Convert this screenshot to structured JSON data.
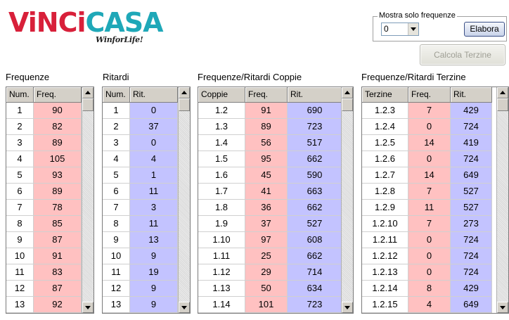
{
  "logo": {
    "vinci": "ViNCi",
    "casa": "CASA",
    "tagline": "WinforLife!"
  },
  "controls": {
    "group_label": "Mostra solo frequenze",
    "combo_value": "0",
    "elabora_label": "Elabora",
    "calcola_label": "Calcola Terzine"
  },
  "sections": {
    "frequenze": "Frequenze",
    "ritardi": "Ritardi",
    "coppie": "Frequenze/Ritardi Coppie",
    "terzine": "Frequenze/Ritardi Terzine"
  },
  "colors": {
    "freq_bg": "#ffc1c1",
    "rit_bg": "#c3c3ff",
    "accent_red": "#d8203a",
    "accent_teal": "#1fa8b8"
  },
  "grids": [
    {
      "id": "frequenze",
      "headers": [
        "Num.",
        "Freq."
      ],
      "styles": [
        "plain",
        "red"
      ],
      "rows": [
        [
          "1",
          "90"
        ],
        [
          "2",
          "82"
        ],
        [
          "3",
          "89"
        ],
        [
          "4",
          "105"
        ],
        [
          "5",
          "93"
        ],
        [
          "6",
          "89"
        ],
        [
          "7",
          "78"
        ],
        [
          "8",
          "85"
        ],
        [
          "9",
          "87"
        ],
        [
          "10",
          "91"
        ],
        [
          "11",
          "83"
        ],
        [
          "12",
          "87"
        ],
        [
          "13",
          "92"
        ]
      ]
    },
    {
      "id": "ritardi",
      "headers": [
        "Num.",
        "Rit."
      ],
      "styles": [
        "plain",
        "blue"
      ],
      "rows": [
        [
          "1",
          "0"
        ],
        [
          "2",
          "37"
        ],
        [
          "3",
          "0"
        ],
        [
          "4",
          "4"
        ],
        [
          "5",
          "1"
        ],
        [
          "6",
          "11"
        ],
        [
          "7",
          "3"
        ],
        [
          "8",
          "11"
        ],
        [
          "9",
          "13"
        ],
        [
          "10",
          "9"
        ],
        [
          "11",
          "19"
        ],
        [
          "12",
          "9"
        ],
        [
          "13",
          "9"
        ]
      ]
    },
    {
      "id": "coppie",
      "headers": [
        "Coppie",
        "Freq.",
        "Rit."
      ],
      "styles": [
        "plain",
        "red",
        "blue"
      ],
      "rows": [
        [
          "1.2",
          "91",
          "690"
        ],
        [
          "1.3",
          "89",
          "723"
        ],
        [
          "1.4",
          "56",
          "517"
        ],
        [
          "1.5",
          "95",
          "662"
        ],
        [
          "1.6",
          "45",
          "590"
        ],
        [
          "1.7",
          "41",
          "663"
        ],
        [
          "1.8",
          "36",
          "662"
        ],
        [
          "1.9",
          "37",
          "527"
        ],
        [
          "1.10",
          "97",
          "608"
        ],
        [
          "1.11",
          "25",
          "662"
        ],
        [
          "1.12",
          "29",
          "714"
        ],
        [
          "1.13",
          "50",
          "634"
        ],
        [
          "1.14",
          "101",
          "723"
        ]
      ]
    },
    {
      "id": "terzine",
      "headers": [
        "Terzine",
        "Freq.",
        "Rit."
      ],
      "styles": [
        "plain",
        "red",
        "blue"
      ],
      "rows": [
        [
          "1.2.3",
          "7",
          "429"
        ],
        [
          "1.2.4",
          "0",
          "724"
        ],
        [
          "1.2.5",
          "14",
          "419"
        ],
        [
          "1.2.6",
          "0",
          "724"
        ],
        [
          "1.2.7",
          "14",
          "649"
        ],
        [
          "1.2.8",
          "7",
          "527"
        ],
        [
          "1.2.9",
          "11",
          "527"
        ],
        [
          "1.2.10",
          "7",
          "273"
        ],
        [
          "1.2.11",
          "0",
          "724"
        ],
        [
          "1.2.12",
          "0",
          "724"
        ],
        [
          "1.2.13",
          "0",
          "724"
        ],
        [
          "1.2.14",
          "8",
          "429"
        ],
        [
          "1.2.15",
          "4",
          "649"
        ]
      ]
    }
  ]
}
